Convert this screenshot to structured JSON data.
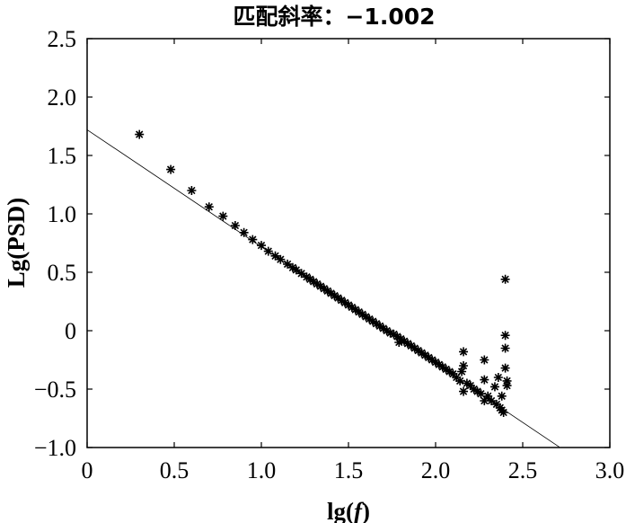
{
  "chart_data": {
    "type": "scatter",
    "title": "匹配斜率：−1.002",
    "xlabel_prefix": "lg(",
    "xlabel_var": "f",
    "xlabel_suffix": ")",
    "ylabel": "Lg(PSD)",
    "xlim": [
      0,
      3.0
    ],
    "ylim": [
      -1.0,
      2.5
    ],
    "xticks": [
      "0",
      "0.5",
      "1.0",
      "1.5",
      "2.0",
      "2.5",
      "3.0"
    ],
    "yticks": [
      "2.5",
      "2.0",
      "1.5",
      "1.0",
      "0.5",
      "0",
      "−0.5",
      "−1.0"
    ],
    "grid": false,
    "legend": "none",
    "fit_line": {
      "slope": -1.002,
      "intercept": 1.72,
      "x": [
        0,
        2.71
      ]
    },
    "scatter": {
      "marker": "asterisk",
      "x": [
        0.3,
        0.48,
        0.6,
        0.7,
        0.78,
        0.85,
        0.9,
        0.95,
        1.0,
        1.04,
        1.08,
        1.11,
        1.15,
        1.18,
        1.2,
        1.23,
        1.26,
        1.28,
        1.3,
        1.32,
        1.34,
        1.36,
        1.38,
        1.4,
        1.42,
        1.44,
        1.46,
        1.48,
        1.5,
        1.52,
        1.54,
        1.56,
        1.58,
        1.6,
        1.62,
        1.64,
        1.66,
        1.68,
        1.7,
        1.72,
        1.74,
        1.76,
        1.78,
        1.79,
        1.8,
        1.82,
        1.84,
        1.86,
        1.88,
        1.9,
        1.92,
        1.94,
        1.96,
        1.98,
        2.0,
        2.02,
        2.04,
        2.06,
        2.08,
        2.1,
        2.12,
        2.14,
        2.15,
        2.16,
        2.16,
        2.16,
        2.18,
        2.2,
        2.22,
        2.24,
        2.26,
        2.28,
        2.28,
        2.28,
        2.3,
        2.32,
        2.34,
        2.35,
        2.36,
        2.37,
        2.38,
        2.38,
        2.39,
        2.4,
        2.4,
        2.4,
        2.4,
        2.41,
        2.41
      ],
      "y": [
        1.68,
        1.38,
        1.2,
        1.06,
        0.98,
        0.9,
        0.84,
        0.78,
        0.73,
        0.68,
        0.64,
        0.61,
        0.57,
        0.54,
        0.52,
        0.49,
        0.46,
        0.44,
        0.42,
        0.4,
        0.38,
        0.36,
        0.34,
        0.32,
        0.3,
        0.28,
        0.26,
        0.24,
        0.22,
        0.2,
        0.18,
        0.16,
        0.14,
        0.12,
        0.1,
        0.08,
        0.06,
        0.04,
        0.02,
        0.0,
        -0.02,
        -0.03,
        -0.05,
        -0.1,
        -0.07,
        -0.09,
        -0.11,
        -0.13,
        -0.15,
        -0.17,
        -0.19,
        -0.21,
        -0.23,
        -0.25,
        -0.27,
        -0.29,
        -0.31,
        -0.33,
        -0.35,
        -0.37,
        -0.4,
        -0.43,
        -0.35,
        -0.18,
        -0.3,
        -0.52,
        -0.45,
        -0.47,
        -0.5,
        -0.52,
        -0.54,
        -0.25,
        -0.42,
        -0.6,
        -0.56,
        -0.6,
        -0.48,
        -0.63,
        -0.4,
        -0.66,
        -0.68,
        -0.56,
        -0.7,
        0.44,
        -0.04,
        -0.15,
        -0.32,
        -0.43,
        -0.47
      ]
    }
  }
}
